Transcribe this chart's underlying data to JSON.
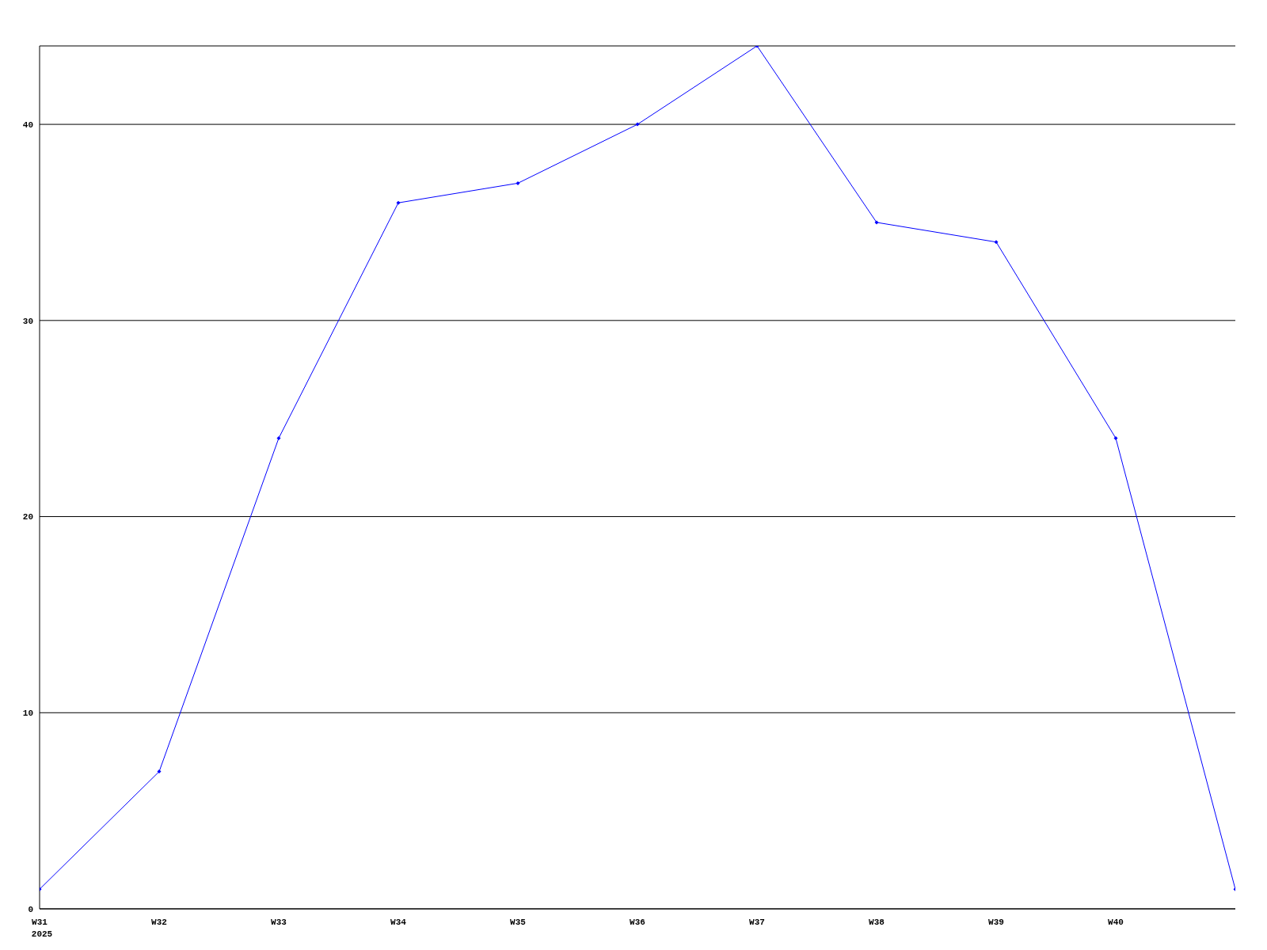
{
  "chart_data": {
    "type": "line",
    "categories": [
      "W31",
      "W32",
      "W33",
      "W34",
      "W35",
      "W36",
      "W37",
      "W38",
      "W39",
      "W40",
      null
    ],
    "series": [
      {
        "color": "#0000ff",
        "values": [
          1,
          7,
          24,
          36,
          37,
          40,
          44,
          35,
          34,
          24,
          1
        ]
      }
    ],
    "ylim": [
      0,
      44
    ],
    "yticks": [
      0,
      10,
      20,
      30,
      40
    ],
    "grid": "y",
    "marker": "diamond",
    "line_style": "solid",
    "legend": false,
    "annotations": [
      "2025"
    ]
  }
}
